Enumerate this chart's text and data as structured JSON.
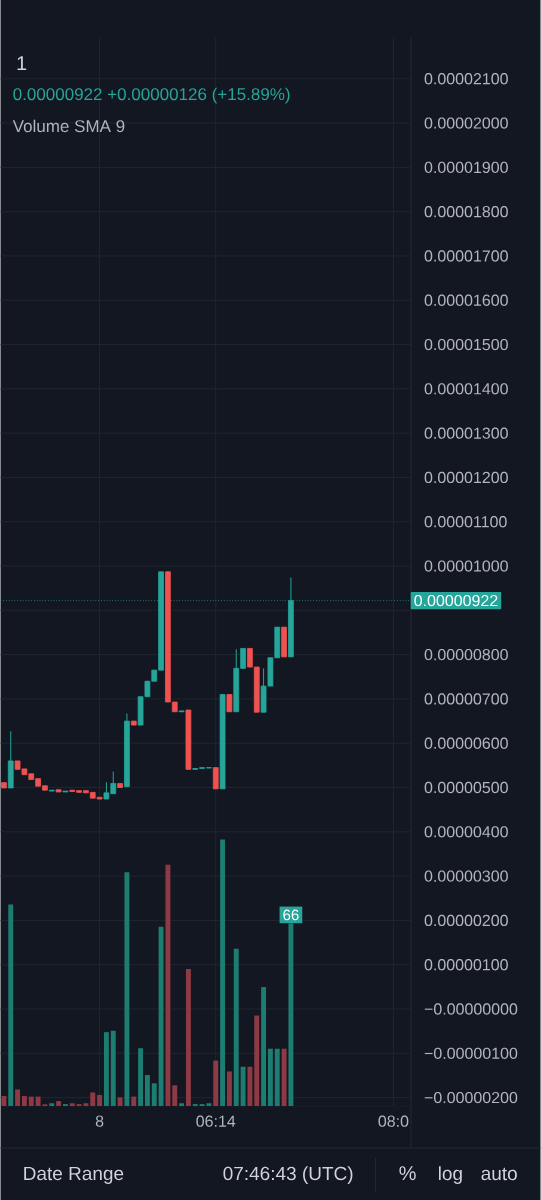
{
  "chart_data": {
    "type": "candlestick",
    "title": "1",
    "annotations": [
      "0.00000922 +0.00000126 (+15.89%)",
      "Volume SMA 9",
      "Date Range",
      "07:46:43 (UTC)",
      "%",
      "log",
      "auto"
    ],
    "categories": [
      null,
      null,
      null,
      null,
      null,
      null,
      null,
      null,
      null,
      null,
      null,
      null,
      null,
      null,
      "8",
      null,
      null,
      null,
      null,
      null,
      null,
      null,
      null,
      null,
      null,
      null,
      null,
      null,
      null,
      null,
      null,
      "06:14",
      null,
      null,
      null,
      null,
      null,
      null,
      null,
      null,
      null,
      null,
      null,
      null,
      null,
      null,
      null,
      null,
      null,
      null,
      null,
      null,
      null,
      null,
      null,
      null,
      null,
      "08:0",
      null,
      null
    ],
    "ohlc": [
      [
        5.11e-06,
        5.11e-06,
        4.99e-06,
        4.99e-06
      ],
      [
        4.99e-06,
        6.27e-06,
        4.99e-06,
        5.6e-06
      ],
      [
        5.6e-06,
        5.6e-06,
        5.41e-06,
        5.41e-06
      ],
      [
        5.42e-06,
        5.42e-06,
        5.29e-06,
        5.29e-06
      ],
      [
        5.31e-06,
        5.31e-06,
        5.18e-06,
        5.18e-06
      ],
      [
        5.2e-06,
        5.2e-06,
        5.03e-06,
        5.03e-06
      ],
      [
        5.04e-06,
        5.04e-06,
        4.94e-06,
        4.94e-06
      ],
      [
        4.92e-06,
        4.94e-06,
        4.92e-06,
        4.94e-06
      ],
      [
        4.95e-06,
        4.95e-06,
        4.9e-06,
        4.9e-06
      ],
      [
        4.9e-06,
        4.92e-06,
        4.9e-06,
        4.92e-06
      ],
      [
        4.94e-06,
        4.94e-06,
        4.91e-06,
        4.91e-06
      ],
      [
        4.93e-06,
        4.93e-06,
        4.89e-06,
        4.89e-06
      ],
      [
        4.93e-06,
        4.93e-06,
        4.88e-06,
        4.88e-06
      ],
      [
        4.89e-06,
        4.89e-06,
        4.76e-06,
        4.76e-06
      ],
      [
        4.78e-06,
        4.78e-06,
        4.74e-06,
        4.74e-06
      ],
      [
        4.74e-06,
        5.12e-06,
        4.74e-06,
        4.88e-06
      ],
      [
        4.86e-06,
        5.36e-06,
        4.86e-06,
        5.09e-06
      ],
      [
        5.09e-06,
        5.09e-06,
        5e-06,
        5e-06
      ],
      [
        5.02e-06,
        6.67e-06,
        5.02e-06,
        6.5e-06
      ],
      [
        6.5e-06,
        6.5e-06,
        6.41e-06,
        6.41e-06
      ],
      [
        6.41e-06,
        7.05e-06,
        6.41e-06,
        7.05e-06
      ],
      [
        7.05e-06,
        7.4e-06,
        7.05e-06,
        7.4e-06
      ],
      [
        7.4e-06,
        7.65e-06,
        7.4e-06,
        7.65e-06
      ],
      [
        7.65e-06,
        9.87e-06,
        7.65e-06,
        9.87e-06
      ],
      [
        9.87e-06,
        9.87e-06,
        6.93e-06,
        6.93e-06
      ],
      [
        6.93e-06,
        6.93e-06,
        6.71e-06,
        6.71e-06
      ],
      [
        6.71e-06,
        6.73e-06,
        6.71e-06,
        6.73e-06
      ],
      [
        6.75e-06,
        6.75e-06,
        5.41e-06,
        5.41e-06
      ],
      [
        5.41e-06,
        5.43e-06,
        5.41e-06,
        5.43e-06
      ],
      [
        5.43e-06,
        5.45e-06,
        5.43e-06,
        5.45e-06
      ],
      [
        5.44e-06,
        5.45e-06,
        5.44e-06,
        5.45e-06
      ],
      [
        5.45e-06,
        5.45e-06,
        4.97e-06,
        4.97e-06
      ],
      [
        4.97e-06,
        7.1e-06,
        4.97e-06,
        7.1e-06
      ],
      [
        7.1e-06,
        7.1e-06,
        6.71e-06,
        6.71e-06
      ],
      [
        6.71e-06,
        8.12e-06,
        6.71e-06,
        7.69e-06
      ],
      [
        7.69e-06,
        8.14e-06,
        7.69e-06,
        8.14e-06
      ],
      [
        8.14e-06,
        8.14e-06,
        7.72e-06,
        7.72e-06
      ],
      [
        7.72e-06,
        7.72e-06,
        6.7e-06,
        6.7e-06
      ],
      [
        6.7e-06,
        7.69e-06,
        6.7e-06,
        7.29e-06
      ],
      [
        7.29e-06,
        7.93e-06,
        7.29e-06,
        7.93e-06
      ],
      [
        7.93e-06,
        8.62e-06,
        7.93e-06,
        8.62e-06
      ],
      [
        8.62e-06,
        8.62e-06,
        7.95e-06,
        7.95e-06
      ],
      [
        7.95e-06,
        9.74e-06,
        7.95e-06,
        9.22e-06
      ],
      null,
      null,
      null,
      null,
      null,
      null,
      null,
      null,
      null,
      null,
      null,
      null,
      null,
      null,
      null,
      null,
      null
    ],
    "series": [
      {
        "type": "bar",
        "axis": "y2",
        "values": [
          3.6,
          72.8,
          6.0,
          3.6,
          3.4,
          3.4,
          0.6,
          1.0,
          1.8,
          0.7,
          1.0,
          0.7,
          1.0,
          4.9,
          4.0,
          26.7,
          27.2,
          3.1,
          84.5,
          3.4,
          20.9,
          11.2,
          8.2,
          64.8,
          87.2,
          7.5,
          1.0,
          49.5,
          0.7,
          0.7,
          1.0,
          16.4,
          96.3,
          12.5,
          56.8,
          14.2,
          14.2,
          32.7,
          43.0,
          20.7,
          20.7,
          20.7,
          66,
          null,
          null,
          null,
          null,
          null,
          null,
          null,
          null,
          null,
          null,
          null,
          null,
          null,
          null,
          null,
          null,
          null
        ],
        "colors": [
          "#8e3a45",
          "#1e7d71",
          "#8e3a45",
          "#8e3a45",
          "#8e3a45",
          "#8e3a45",
          "#8e3a45",
          "#1e7d71",
          "#8e3a45",
          "#1e7d71",
          "#8e3a45",
          "#8e3a45",
          "#8e3a45",
          "#8e3a45",
          "#8e3a45",
          "#1e7d71",
          "#1e7d71",
          "#8e3a45",
          "#1e7d71",
          "#8e3a45",
          "#1e7d71",
          "#1e7d71",
          "#1e7d71",
          "#1e7d71",
          "#8e3a45",
          "#8e3a45",
          "#1e7d71",
          "#8e3a45",
          "#1e7d71",
          "#1e7d71",
          "#1e7d71",
          "#8e3a45",
          "#1e7d71",
          "#8e3a45",
          "#1e7d71",
          "#1e7d71",
          "#8e3a45",
          "#8e3a45",
          "#1e7d71",
          "#1e7d71",
          "#1e7d71",
          "#8e3a45",
          "#1e7d71",
          null,
          null,
          null,
          null,
          null,
          null,
          null,
          null,
          null,
          null,
          null,
          null,
          null,
          null,
          null,
          null,
          null
        ],
        "value_labels": [
          null,
          null,
          null,
          null,
          null,
          null,
          null,
          null,
          null,
          null,
          null,
          null,
          null,
          null,
          null,
          null,
          null,
          null,
          null,
          null,
          null,
          null,
          null,
          null,
          null,
          null,
          null,
          null,
          null,
          null,
          null,
          null,
          null,
          null,
          null,
          null,
          null,
          null,
          null,
          null,
          null,
          null,
          "66",
          null,
          null,
          null,
          null,
          null,
          null,
          null,
          null,
          null,
          null,
          null,
          null,
          null,
          null,
          null,
          null,
          null
        ]
      }
    ],
    "y2lim": [
      0,
      386
    ],
    "ylim": [
      -2.19e-06,
      2.192e-05
    ],
    "yticks": [
      {
        "value": -2e-06,
        "label": "−0.00000200"
      },
      {
        "value": -1e-06,
        "label": "−0.00000100"
      },
      {
        "value": 0,
        "label": "−0.00000000"
      },
      {
        "value": 1e-06,
        "label": "0.00000100"
      },
      {
        "value": 2e-06,
        "label": "0.00000200"
      },
      {
        "value": 3e-06,
        "label": "0.00000300"
      },
      {
        "value": 4e-06,
        "label": "0.00000400"
      },
      {
        "value": 5e-06,
        "label": "0.00000500"
      },
      {
        "value": 6e-06,
        "label": "0.00000600"
      },
      {
        "value": 7e-06,
        "label": "0.00000700"
      },
      {
        "value": 8e-06,
        "label": "0.00000800"
      },
      {
        "value": 9e-06,
        "label": null
      },
      {
        "value": 1e-05,
        "label": "0.00001000"
      },
      {
        "value": 1.1e-05,
        "label": "0.00001100"
      },
      {
        "value": 1.2e-05,
        "label": "0.00001200"
      },
      {
        "value": 1.3e-05,
        "label": "0.00001300"
      },
      {
        "value": 1.4e-05,
        "label": "0.00001400"
      },
      {
        "value": 1.5e-05,
        "label": "0.00001500"
      },
      {
        "value": 1.6e-05,
        "label": "0.00001600"
      },
      {
        "value": 1.7e-05,
        "label": "0.00001700"
      },
      {
        "value": 1.8e-05,
        "label": "0.00001800"
      },
      {
        "value": 1.9e-05,
        "label": "0.00001900"
      },
      {
        "value": 2e-05,
        "label": "0.00002000"
      },
      {
        "value": 2.1e-05,
        "label": "0.00002100"
      }
    ],
    "grid": true,
    "ref_lines": [
      {
        "axis": "y",
        "value": 9.22e-06,
        "label": "0.00000922",
        "color": "#26a69a",
        "line_style": "dotted"
      }
    ]
  }
}
